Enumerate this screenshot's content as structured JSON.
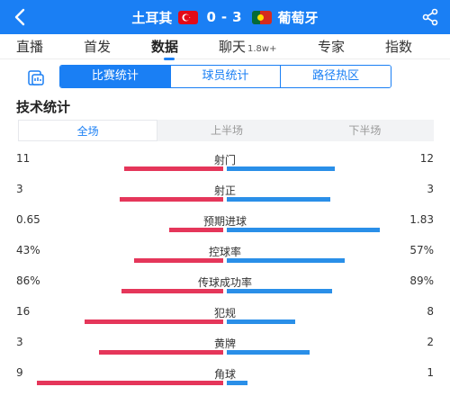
{
  "header": {
    "home_team": "土耳其",
    "away_team": "葡萄牙",
    "home_score": "0",
    "separator": "-",
    "away_score": "3",
    "back_icon": "back-arrow-icon",
    "share_icon": "share-icon"
  },
  "tabs": [
    {
      "label": "直播",
      "active": false
    },
    {
      "label": "首发",
      "active": false
    },
    {
      "label": "数据",
      "active": true
    },
    {
      "label": "聊天",
      "badge": "1.8w+",
      "active": false
    },
    {
      "label": "专家",
      "active": false
    },
    {
      "label": "指数",
      "active": false
    }
  ],
  "subnav": {
    "icon": "chart-icon",
    "items": [
      "比赛统计",
      "球员统计",
      "路径热区"
    ],
    "active_index": 0
  },
  "section_title": "技术统计",
  "periods": [
    "全场",
    "上半场",
    "下半场"
  ],
  "active_period": 0,
  "colors": {
    "home": "#e5365a",
    "away": "#2a8fe8",
    "accent": "#1a7ff4"
  },
  "stats": [
    {
      "label": "射门",
      "home": "11",
      "away": "12",
      "home_frac": 0.48,
      "away_frac": 0.52
    },
    {
      "label": "射正",
      "home": "3",
      "away": "3",
      "home_frac": 0.5,
      "away_frac": 0.5
    },
    {
      "label": "预期进球",
      "home": "0.65",
      "away": "1.83",
      "home_frac": 0.26,
      "away_frac": 0.74
    },
    {
      "label": "控球率",
      "home": "43%",
      "away": "57%",
      "home_frac": 0.43,
      "away_frac": 0.57
    },
    {
      "label": "传球成功率",
      "home": "86%",
      "away": "89%",
      "home_frac": 0.49,
      "away_frac": 0.51
    },
    {
      "label": "犯规",
      "home": "16",
      "away": "8",
      "home_frac": 0.67,
      "away_frac": 0.33
    },
    {
      "label": "黄牌",
      "home": "3",
      "away": "2",
      "home_frac": 0.6,
      "away_frac": 0.4
    },
    {
      "label": "角球",
      "home": "9",
      "away": "1",
      "home_frac": 0.9,
      "away_frac": 0.1
    }
  ]
}
